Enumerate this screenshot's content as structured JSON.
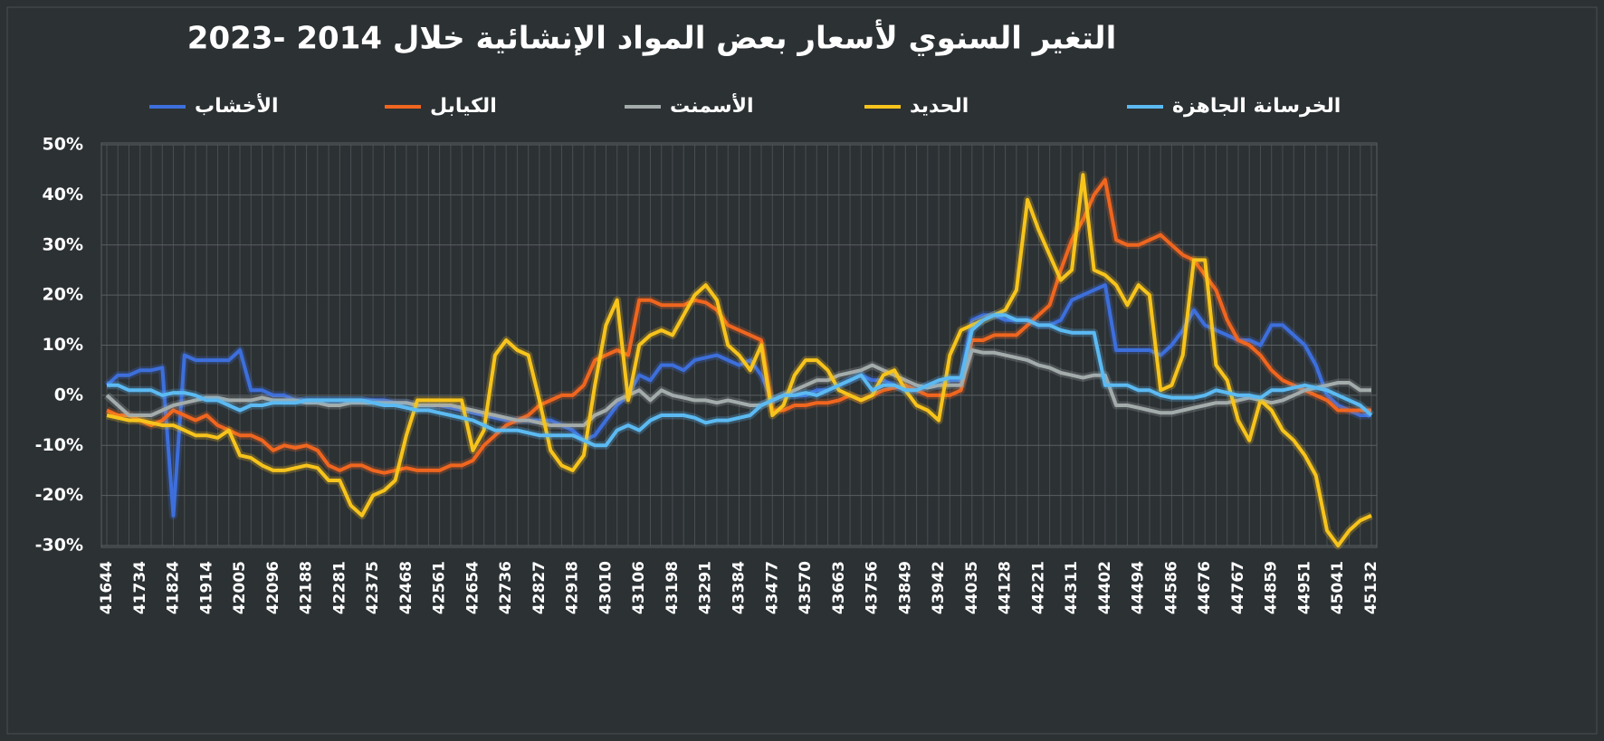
{
  "chart_data": {
    "type": "line",
    "title": "التغير السنوي لأسعار بعض المواد الإنشائية خلال 2014 -2023",
    "legend": "top",
    "grid": true,
    "ylim": [
      -30,
      50
    ],
    "yticks": [
      {
        "value": -30,
        "label": "-30%"
      },
      {
        "value": -20,
        "label": "-20%"
      },
      {
        "value": -10,
        "label": "-10%"
      },
      {
        "value": 0,
        "label": "0%"
      },
      {
        "value": 10,
        "label": "10%"
      },
      {
        "value": 20,
        "label": "20%"
      },
      {
        "value": 30,
        "label": "30%"
      },
      {
        "value": 40,
        "label": "40%"
      },
      {
        "value": 50,
        "label": "50%"
      }
    ],
    "categories": [
      "41644",
      null,
      null,
      "41734",
      null,
      null,
      "41824",
      null,
      null,
      "41914",
      null,
      null,
      "42005",
      null,
      null,
      "42096",
      null,
      null,
      "42188",
      null,
      null,
      "42281",
      null,
      null,
      "42375",
      null,
      null,
      "42468",
      null,
      null,
      "42561",
      null,
      null,
      "42654",
      null,
      null,
      "42736",
      null,
      null,
      "42827",
      null,
      null,
      "42918",
      null,
      null,
      "43010",
      null,
      null,
      "43106",
      null,
      null,
      "43198",
      null,
      null,
      "43291",
      null,
      null,
      "43384",
      null,
      null,
      "43477",
      null,
      null,
      "43570",
      null,
      null,
      "43663",
      null,
      null,
      "43756",
      null,
      null,
      "43849",
      null,
      null,
      "43942",
      null,
      null,
      "44035",
      null,
      null,
      "44128",
      null,
      null,
      "44221",
      null,
      null,
      "44311",
      null,
      null,
      "44402",
      null,
      null,
      "44494",
      null,
      null,
      "44586",
      null,
      null,
      "44676",
      null,
      null,
      "44767",
      null,
      null,
      "44859",
      null,
      null,
      "44951",
      null,
      null,
      "45041",
      null,
      null,
      "45132"
    ],
    "series": [
      {
        "name": "الأخشاب",
        "color": "#3d6fdc",
        "values": [
          2,
          4,
          4,
          5,
          5,
          5.5,
          -24,
          8,
          7,
          7,
          7,
          7,
          9,
          1,
          1,
          0,
          0,
          -1,
          -1,
          -1,
          -1,
          -1,
          -1,
          -1,
          -1,
          -1,
          -1.5,
          -1.5,
          -2,
          -2,
          -2,
          -2.5,
          -3,
          -3.5,
          -4,
          -4.5,
          -5,
          -5,
          -5,
          -5,
          -5,
          -6,
          -7,
          -9,
          -8,
          -5,
          -2,
          0,
          4,
          3,
          6,
          6,
          5,
          7,
          7.5,
          8,
          7,
          6,
          7,
          4,
          -1,
          0,
          0,
          0,
          1,
          1,
          2,
          3,
          4,
          3,
          3,
          2,
          1,
          1,
          2,
          2,
          3,
          3,
          15,
          16,
          16,
          15,
          15,
          15,
          14,
          14,
          15,
          19,
          20,
          21,
          22,
          9,
          9,
          9,
          9,
          8,
          10,
          13,
          17,
          14,
          13,
          12,
          11,
          11,
          10,
          14,
          14,
          12,
          10,
          6,
          0,
          -2,
          -3,
          -4,
          -4
        ]
      },
      {
        "name": "الكيابل",
        "color": "#f0661f",
        "values": [
          -3,
          -4,
          -4,
          -5,
          -6,
          -5,
          -3,
          -4,
          -5,
          -4,
          -6,
          -7,
          -8,
          -8,
          -9,
          -11,
          -10,
          -10.5,
          -10,
          -11,
          -14,
          -15,
          -14,
          -14,
          -15,
          -15.5,
          -15,
          -14.5,
          -15,
          -15,
          -15,
          -14,
          -14,
          -13,
          -10,
          -8,
          -6,
          -5,
          -4,
          -2,
          -1,
          0,
          0,
          2,
          7,
          8,
          9,
          8,
          19,
          19,
          18,
          18,
          18,
          19,
          18.5,
          17,
          14,
          13,
          12,
          11,
          -3,
          -3,
          -2,
          -2,
          -1.5,
          -1.5,
          -1,
          0,
          -1,
          0,
          1,
          1.5,
          2,
          1,
          0,
          0,
          0,
          1,
          11,
          11,
          12,
          12,
          12,
          14,
          16,
          18,
          25,
          31,
          35,
          40,
          43,
          31,
          30,
          30,
          31,
          32,
          30,
          28,
          27,
          24,
          21,
          15,
          11,
          10,
          8,
          5,
          3,
          2,
          1,
          0,
          -1,
          -3,
          -3,
          -3,
          -3
        ]
      },
      {
        "name": "الأسمنت",
        "color": "#a3abab",
        "values": [
          0,
          -2,
          -4,
          -4,
          -4,
          -3,
          -2,
          -1.5,
          -1,
          -0.5,
          -0.5,
          -1,
          -1,
          -1,
          -0.5,
          -1,
          -1,
          -1,
          -1.5,
          -1.5,
          -2,
          -2,
          -1.5,
          -1.5,
          -1.5,
          -1.5,
          -1.5,
          -1.5,
          -2,
          -2,
          -2,
          -2,
          -2.5,
          -3,
          -3.5,
          -4,
          -4.5,
          -5,
          -5,
          -5.5,
          -6,
          -6,
          -6,
          -6,
          -4,
          -3,
          -1,
          0,
          1,
          -1,
          1,
          0,
          -0.5,
          -1,
          -1,
          -1.5,
          -1,
          -1.5,
          -2,
          -2,
          -1,
          0,
          1,
          2,
          3,
          3,
          4,
          4.5,
          5,
          6,
          5,
          4,
          3,
          2,
          1.5,
          2,
          2,
          2,
          9,
          8.5,
          8.5,
          8,
          7.5,
          7,
          6,
          5.5,
          4.5,
          4,
          3.5,
          4,
          4,
          -2,
          -2,
          -2.5,
          -3,
          -3.5,
          -3.5,
          -3,
          -2.5,
          -2,
          -1.5,
          -1.5,
          -1,
          -0.5,
          -1,
          -1.5,
          -1,
          0,
          1,
          1.5,
          2,
          2.5,
          2.5,
          1,
          1
        ]
      },
      {
        "name": "الحديد",
        "color": "#f7c41c",
        "values": [
          -4,
          -4.5,
          -5,
          -5,
          -5.5,
          -6,
          -6,
          -7,
          -8,
          -8,
          -8.5,
          -7,
          -12,
          -12.5,
          -14,
          -15,
          -15,
          -14.5,
          -14,
          -14.5,
          -17,
          -17,
          -22,
          -24,
          -20,
          -19,
          -17,
          -8,
          -1,
          -1,
          -1,
          -1,
          -1,
          -11,
          -7,
          8,
          11,
          9,
          8,
          -1,
          -11,
          -14,
          -15,
          -12,
          2,
          14,
          19,
          -1,
          10,
          12,
          13,
          12,
          16,
          20,
          22,
          19,
          10,
          8,
          5,
          10,
          -4,
          -2,
          4,
          7,
          7,
          5,
          1,
          0,
          -1,
          0,
          4,
          5,
          1,
          -2,
          -3,
          -5,
          8,
          13,
          14,
          15,
          16,
          17,
          21,
          39,
          33,
          28,
          23,
          25,
          44,
          25,
          24,
          22,
          18,
          22,
          20,
          1,
          2,
          8,
          27,
          27,
          6,
          3,
          -5,
          -9,
          -1,
          -3,
          -7,
          -9,
          -12,
          -16,
          -27,
          -30,
          -27,
          -25,
          -24
        ]
      },
      {
        "name": "الخرسانة الجاهزة",
        "color": "#5cbaf2",
        "values": [
          2,
          2,
          1,
          1,
          1,
          0,
          0.5,
          0.5,
          0,
          -1,
          -1,
          -2,
          -3,
          -2,
          -2,
          -1.5,
          -1.5,
          -1.5,
          -1,
          -1,
          -1,
          -1,
          -1,
          -1,
          -1.5,
          -2,
          -2,
          -2.5,
          -3,
          -3,
          -3.5,
          -4,
          -4.5,
          -5,
          -6,
          -7,
          -7,
          -7,
          -7.5,
          -8,
          -8,
          -8,
          -8,
          -9,
          -10,
          -10,
          -7,
          -6,
          -7,
          -5,
          -4,
          -4,
          -4,
          -4.5,
          -5.5,
          -5,
          -5,
          -4.5,
          -4,
          -2,
          -1,
          0,
          0,
          0.5,
          0,
          1,
          2,
          3,
          4,
          1,
          2,
          2,
          1,
          1,
          2,
          3,
          3.5,
          3.5,
          13,
          15,
          16,
          16,
          15,
          15,
          14,
          14,
          13,
          12.5,
          12.5,
          12.5,
          2,
          2,
          2,
          1,
          1,
          0,
          -0.5,
          -0.5,
          -0.5,
          0,
          1,
          0.5,
          0,
          0,
          -0.5,
          1,
          1,
          1.5,
          2,
          1.5,
          1,
          0,
          -1,
          -2,
          -4
        ]
      }
    ]
  }
}
